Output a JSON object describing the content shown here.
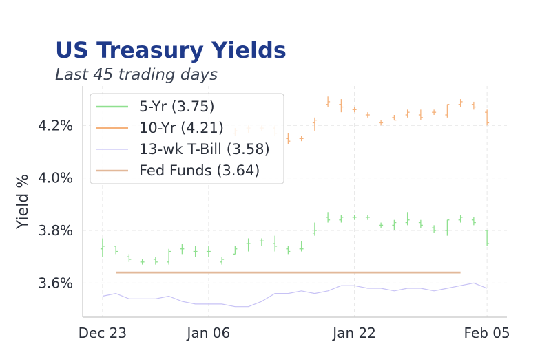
{
  "chart_data": {
    "type": "ohlc-line",
    "title": "US Treasury Yields",
    "subtitle": "Last 45 trading days",
    "ylabel": "Yield %",
    "ylim": [
      3.47,
      4.35
    ],
    "yticks": [
      3.6,
      3.8,
      4.0,
      4.2
    ],
    "ytick_labels": [
      "3.6%",
      "3.8%",
      "4.0%",
      "4.2%"
    ],
    "x_day_range": [
      -1.5,
      30.5
    ],
    "xticks": [
      {
        "day": 0,
        "label": "Dec 23"
      },
      {
        "day": 8,
        "label": "Jan 06"
      },
      {
        "day": 19,
        "label": "Jan 22"
      },
      {
        "day": 29,
        "label": "Feb 05"
      }
    ],
    "grid": true,
    "legend_position": "upper-left",
    "colors": {
      "five_yr": "#8fe08f",
      "ten_yr": "#f5b27c",
      "tbill": "#c7c2f5",
      "fed": "#e2b899",
      "title": "#1f3a8a"
    },
    "series": [
      {
        "name": "5-Yr (3.75)",
        "key": "five_yr",
        "style": "ohlc",
        "points": [
          {
            "d": 0,
            "o": 3.73,
            "h": 3.77,
            "l": 3.7,
            "c": 3.74
          },
          {
            "d": 1,
            "o": 3.74,
            "h": 3.74,
            "l": 3.71,
            "c": 3.72
          },
          {
            "d": 2,
            "o": 3.7,
            "h": 3.71,
            "l": 3.68,
            "c": 3.69
          },
          {
            "d": 3,
            "o": 3.68,
            "h": 3.69,
            "l": 3.67,
            "c": 3.68
          },
          {
            "d": 4,
            "o": 3.69,
            "h": 3.7,
            "l": 3.67,
            "c": 3.68
          },
          {
            "d": 5,
            "o": 3.68,
            "h": 3.73,
            "l": 3.67,
            "c": 3.72
          },
          {
            "d": 6,
            "o": 3.73,
            "h": 3.75,
            "l": 3.71,
            "c": 3.73
          },
          {
            "d": 7,
            "o": 3.72,
            "h": 3.74,
            "l": 3.7,
            "c": 3.72
          },
          {
            "d": 8,
            "o": 3.72,
            "h": 3.74,
            "l": 3.7,
            "c": 3.72
          },
          {
            "d": 9,
            "o": 3.68,
            "h": 3.7,
            "l": 3.67,
            "c": 3.69
          },
          {
            "d": 10,
            "o": 3.71,
            "h": 3.74,
            "l": 3.71,
            "c": 3.73
          },
          {
            "d": 11,
            "o": 3.75,
            "h": 3.77,
            "l": 3.72,
            "c": 3.75
          },
          {
            "d": 12,
            "o": 3.76,
            "h": 3.77,
            "l": 3.74,
            "c": 3.76
          },
          {
            "d": 13,
            "o": 3.75,
            "h": 3.78,
            "l": 3.72,
            "c": 3.74
          },
          {
            "d": 14,
            "o": 3.73,
            "h": 3.74,
            "l": 3.71,
            "c": 3.72
          },
          {
            "d": 15,
            "o": 3.73,
            "h": 3.76,
            "l": 3.72,
            "c": 3.73
          },
          {
            "d": 16,
            "o": 3.79,
            "h": 3.83,
            "l": 3.78,
            "c": 3.8
          },
          {
            "d": 17,
            "o": 3.85,
            "h": 3.87,
            "l": 3.83,
            "c": 3.84
          },
          {
            "d": 18,
            "o": 3.84,
            "h": 3.86,
            "l": 3.83,
            "c": 3.85
          },
          {
            "d": 19,
            "o": 3.85,
            "h": 3.86,
            "l": 3.84,
            "c": 3.85
          },
          {
            "d": 20,
            "o": 3.85,
            "h": 3.86,
            "l": 3.84,
            "c": 3.85
          },
          {
            "d": 21,
            "o": 3.82,
            "h": 3.83,
            "l": 3.81,
            "c": 3.82
          },
          {
            "d": 22,
            "o": 3.82,
            "h": 3.84,
            "l": 3.8,
            "c": 3.83
          },
          {
            "d": 23,
            "o": 3.83,
            "h": 3.87,
            "l": 3.82,
            "c": 3.84
          },
          {
            "d": 24,
            "o": 3.83,
            "h": 3.84,
            "l": 3.81,
            "c": 3.82
          },
          {
            "d": 25,
            "o": 3.81,
            "h": 3.82,
            "l": 3.79,
            "c": 3.8
          },
          {
            "d": 26,
            "o": 3.8,
            "h": 3.84,
            "l": 3.78,
            "c": 3.84
          },
          {
            "d": 27,
            "o": 3.84,
            "h": 3.86,
            "l": 3.83,
            "c": 3.85
          },
          {
            "d": 28,
            "o": 3.84,
            "h": 3.85,
            "l": 3.82,
            "c": 3.83
          },
          {
            "d": 29,
            "o": 3.8,
            "h": 3.8,
            "l": 3.74,
            "c": 3.75
          }
        ]
      },
      {
        "name": "10-Yr (4.21)",
        "key": "ten_yr",
        "style": "ohlc",
        "points": [
          {
            "d": 10,
            "o": 4.17,
            "h": 4.19,
            "l": 4.16,
            "c": 4.18
          },
          {
            "d": 11,
            "o": 4.19,
            "h": 4.2,
            "l": 4.17,
            "c": 4.19
          },
          {
            "d": 12,
            "o": 4.19,
            "h": 4.2,
            "l": 4.18,
            "c": 4.19
          },
          {
            "d": 13,
            "o": 4.19,
            "h": 4.2,
            "l": 4.16,
            "c": 4.17
          },
          {
            "d": 14,
            "o": 4.15,
            "h": 4.17,
            "l": 4.13,
            "c": 4.14
          },
          {
            "d": 15,
            "o": 4.15,
            "h": 4.16,
            "l": 4.14,
            "c": 4.15
          },
          {
            "d": 16,
            "o": 4.21,
            "h": 4.23,
            "l": 4.18,
            "c": 4.22
          },
          {
            "d": 17,
            "o": 4.28,
            "h": 4.31,
            "l": 4.27,
            "c": 4.29
          },
          {
            "d": 18,
            "o": 4.28,
            "h": 4.3,
            "l": 4.25,
            "c": 4.27
          },
          {
            "d": 19,
            "o": 4.26,
            "h": 4.27,
            "l": 4.25,
            "c": 4.26
          },
          {
            "d": 20,
            "o": 4.24,
            "h": 4.25,
            "l": 4.23,
            "c": 4.24
          },
          {
            "d": 21,
            "o": 4.21,
            "h": 4.22,
            "l": 4.2,
            "c": 4.21
          },
          {
            "d": 22,
            "o": 4.23,
            "h": 4.24,
            "l": 4.22,
            "c": 4.22
          },
          {
            "d": 23,
            "o": 4.24,
            "h": 4.26,
            "l": 4.23,
            "c": 4.25
          },
          {
            "d": 24,
            "o": 4.24,
            "h": 4.26,
            "l": 4.22,
            "c": 4.23
          },
          {
            "d": 25,
            "o": 4.25,
            "h": 4.26,
            "l": 4.24,
            "c": 4.25
          },
          {
            "d": 26,
            "o": 4.24,
            "h": 4.28,
            "l": 4.23,
            "c": 4.28
          },
          {
            "d": 27,
            "o": 4.28,
            "h": 4.3,
            "l": 4.27,
            "c": 4.29
          },
          {
            "d": 28,
            "o": 4.28,
            "h": 4.29,
            "l": 4.26,
            "c": 4.27
          },
          {
            "d": 29,
            "o": 4.25,
            "h": 4.26,
            "l": 4.2,
            "c": 4.21
          }
        ]
      },
      {
        "name": "13-wk T-Bill (3.58)",
        "key": "tbill",
        "style": "line",
        "x": [
          0,
          1,
          2,
          3,
          4,
          5,
          6,
          7,
          8,
          9,
          10,
          11,
          12,
          13,
          14,
          15,
          16,
          17,
          18,
          19,
          20,
          21,
          22,
          23,
          24,
          25,
          26,
          27,
          28,
          29
        ],
        "values": [
          3.55,
          3.56,
          3.54,
          3.54,
          3.54,
          3.55,
          3.53,
          3.52,
          3.52,
          3.52,
          3.51,
          3.51,
          3.53,
          3.56,
          3.56,
          3.57,
          3.56,
          3.57,
          3.59,
          3.59,
          3.58,
          3.58,
          3.57,
          3.58,
          3.58,
          3.57,
          3.58,
          3.59,
          3.6,
          3.58
        ]
      },
      {
        "name": "Fed Funds (3.64)",
        "key": "fed",
        "style": "flat",
        "x": [
          1,
          27
        ],
        "values": [
          3.64,
          3.64
        ]
      }
    ]
  }
}
